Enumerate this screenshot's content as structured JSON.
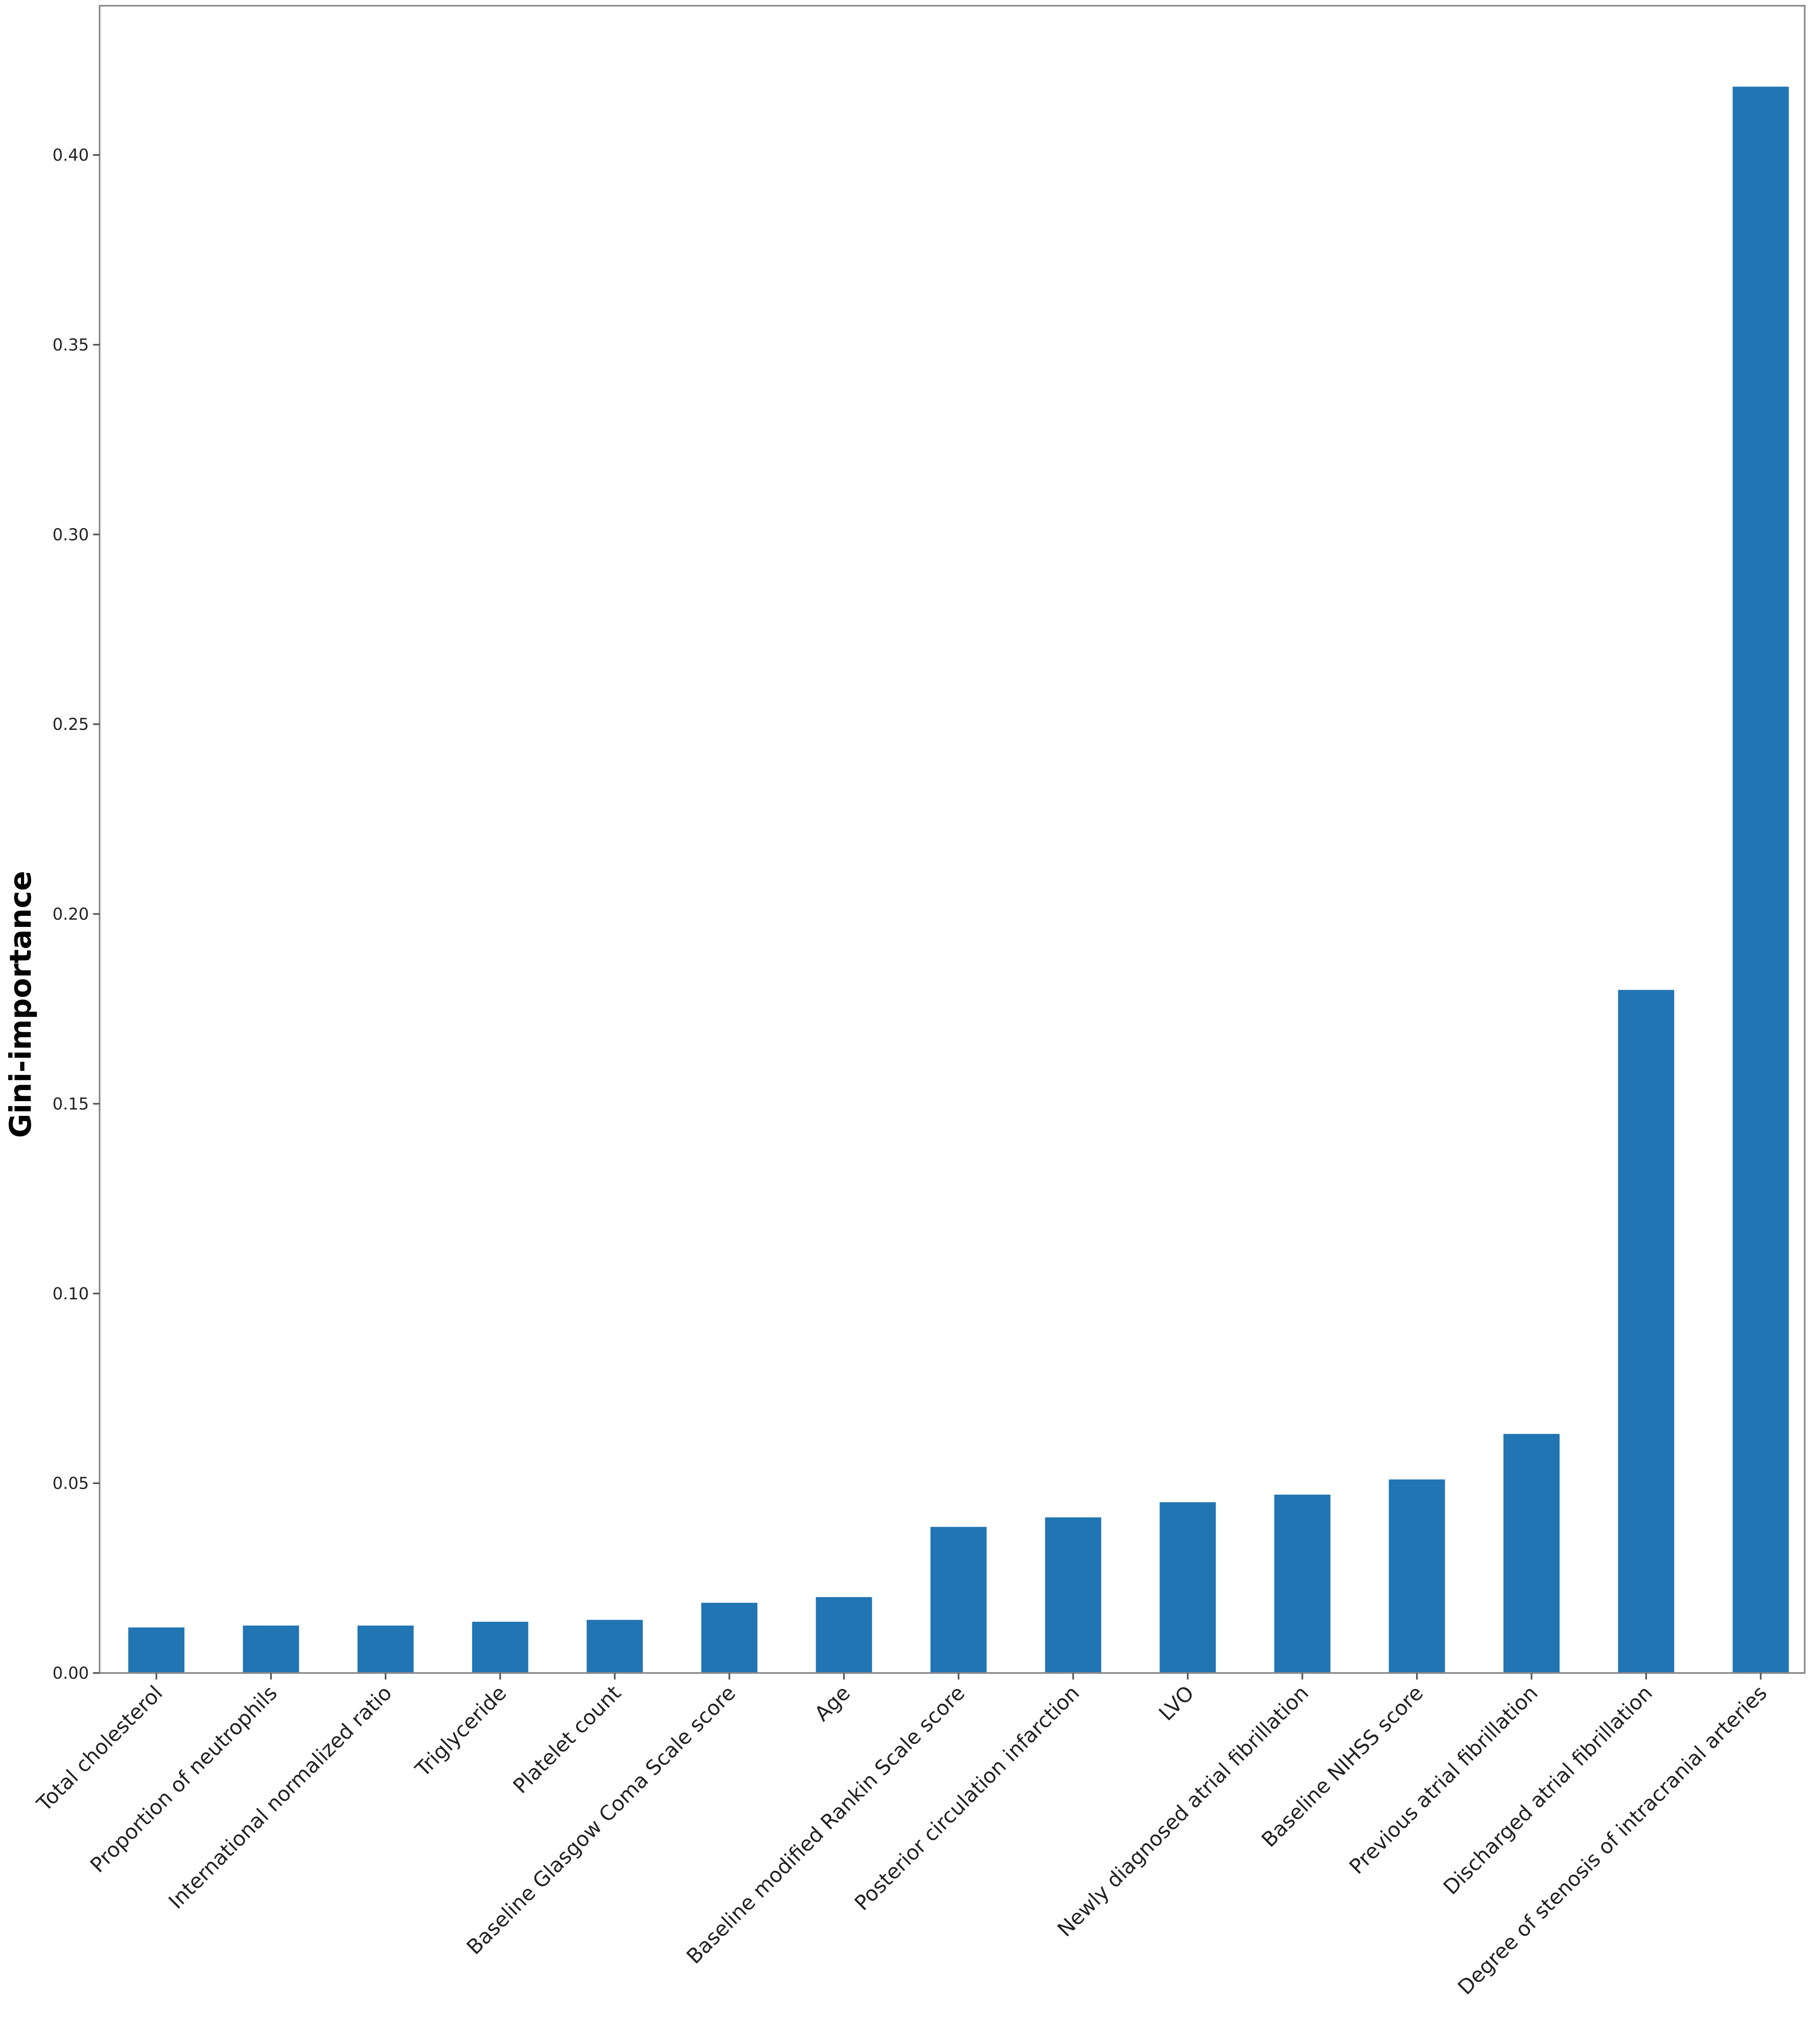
{
  "chart_data": {
    "type": "bar",
    "title": "",
    "xlabel": "",
    "ylabel": "Gini-importance",
    "ylim": [
      0,
      0.44
    ],
    "yticks": [
      {
        "value": 0.0,
        "label": "0.00"
      },
      {
        "value": 0.05,
        "label": "0.05"
      },
      {
        "value": 0.1,
        "label": "0.10"
      },
      {
        "value": 0.15,
        "label": "0.15"
      },
      {
        "value": 0.2,
        "label": "0.20"
      },
      {
        "value": 0.25,
        "label": "0.25"
      },
      {
        "value": 0.3,
        "label": "0.30"
      },
      {
        "value": 0.35,
        "label": "0.35"
      },
      {
        "value": 0.4,
        "label": "0.40"
      }
    ],
    "categories": [
      "Total cholesterol",
      "Proportion of neutrophils",
      "International normalized ratio",
      "Triglyceride",
      "Platelet count",
      "Baseline Glasgow Coma Scale score",
      "Age",
      "Baseline modified Rankin Scale score",
      "Posterior circulation infarction",
      "LVO",
      "Newly diagnosed atrial fibrillation",
      "Baseline NIHSS score",
      "Previous atrial fibrillation",
      "Discharged atrial fibrillation",
      "Degree of stenosis of intracranial arteries"
    ],
    "values": [
      0.012,
      0.0125,
      0.0125,
      0.0135,
      0.014,
      0.0185,
      0.02,
      0.0385,
      0.041,
      0.045,
      0.047,
      0.051,
      0.063,
      0.18,
      0.418
    ],
    "bar_color": "#2275b3",
    "grid": false
  }
}
